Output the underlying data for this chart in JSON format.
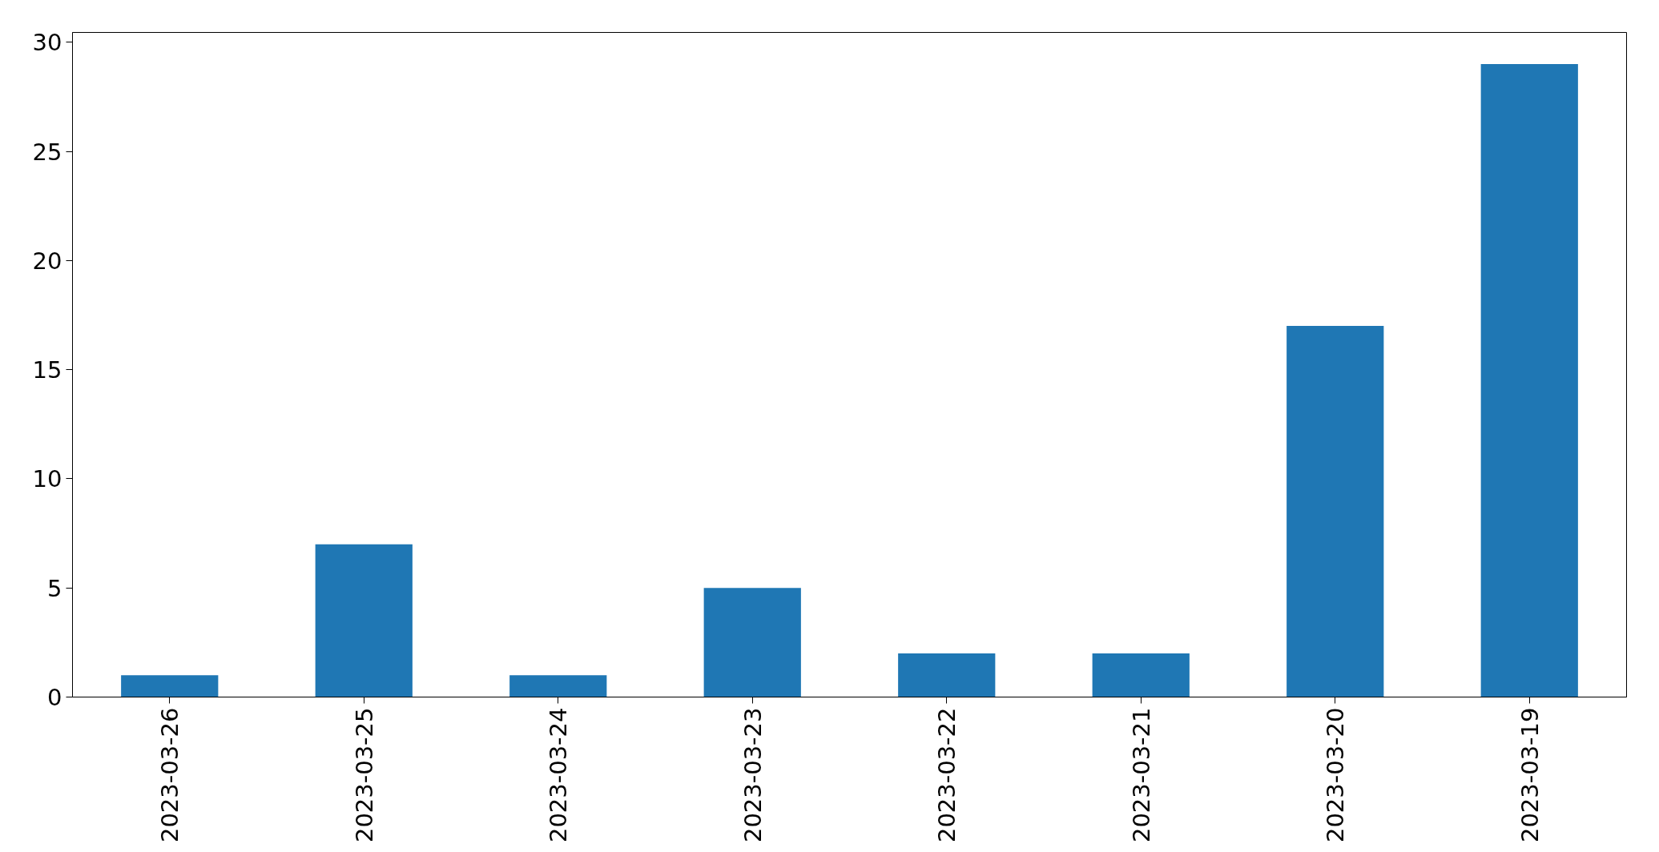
{
  "chart_data": {
    "type": "bar",
    "categories": [
      "2023-03-26",
      "2023-03-25",
      "2023-03-24",
      "2023-03-23",
      "2023-03-22",
      "2023-03-21",
      "2023-03-20",
      "2023-03-19"
    ],
    "values": [
      1,
      7,
      1,
      5,
      2,
      2,
      17,
      29
    ],
    "color": "#1f77b4",
    "ylim": [
      0,
      30.45
    ],
    "yticks": [
      0,
      5,
      10,
      15,
      20,
      25,
      30
    ],
    "grid": false
  }
}
